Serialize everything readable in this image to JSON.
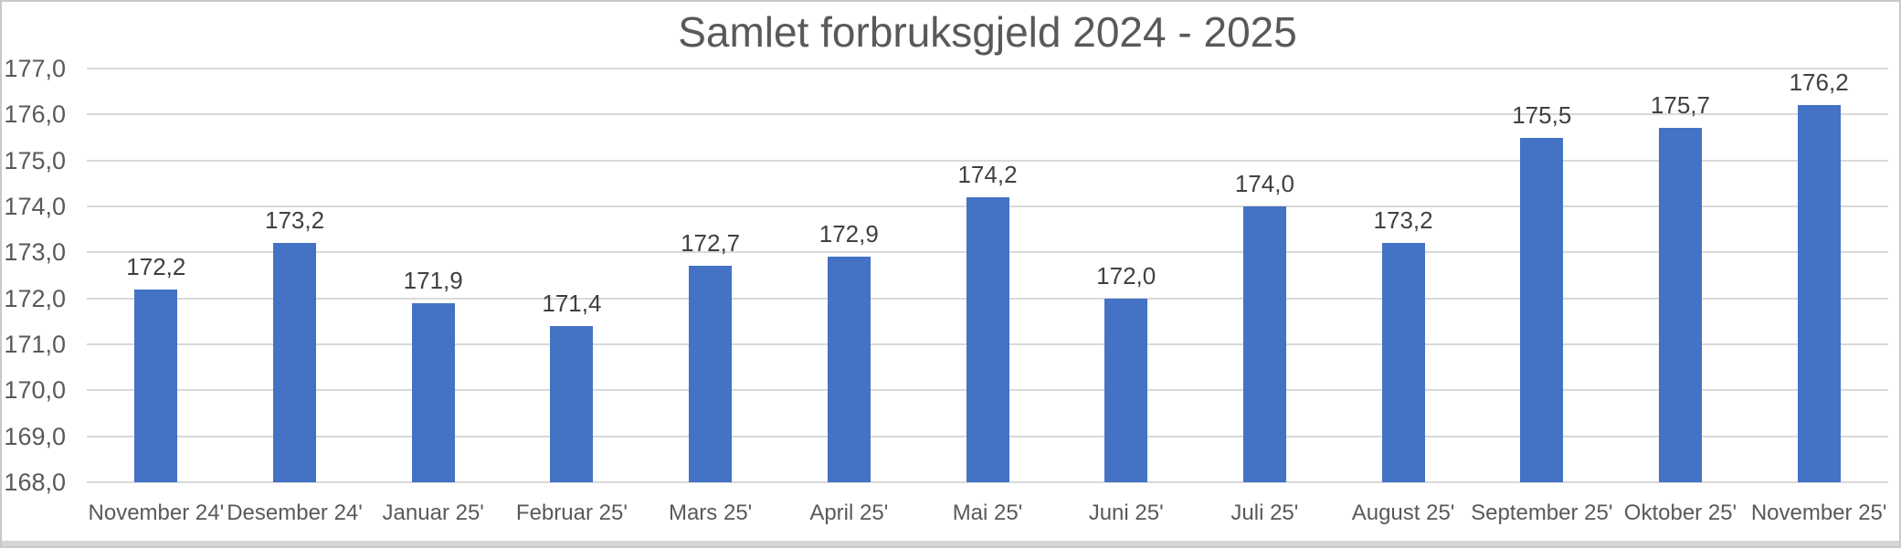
{
  "chart_data": {
    "type": "bar",
    "title": "Samlet forbruksgjeld 2024 - 2025",
    "categories": [
      "November 24'",
      "Desember 24'",
      "Januar 25'",
      "Februar 25'",
      "Mars 25'",
      "April 25'",
      "Mai 25'",
      "Juni 25'",
      "Juli 25'",
      "August 25'",
      "September 25'",
      "Oktober 25'",
      "November 25'"
    ],
    "values": [
      172.2,
      173.2,
      171.9,
      171.4,
      172.7,
      172.9,
      174.2,
      172.0,
      174.0,
      173.2,
      175.5,
      175.7,
      176.2
    ],
    "data_labels": [
      "172,2",
      "173,2",
      "171,9",
      "171,4",
      "172,7",
      "172,9",
      "174,2",
      "172,0",
      "174,0",
      "173,2",
      "175,5",
      "175,7",
      "176,2"
    ],
    "xlabel": "",
    "ylabel": "",
    "ylim": [
      168.0,
      177.0
    ],
    "ytick_step": 1.0,
    "ytick_labels": [
      "168,0",
      "169,0",
      "170,0",
      "171,0",
      "172,0",
      "173,0",
      "174,0",
      "175,0",
      "176,0",
      "177,0"
    ],
    "grid": true,
    "legend": "none",
    "colors": {
      "bar": "#4472C4",
      "gridline": "#D9D9D9",
      "title_text": "#595959",
      "axis_text": "#595959",
      "data_label_text": "#404040"
    }
  }
}
